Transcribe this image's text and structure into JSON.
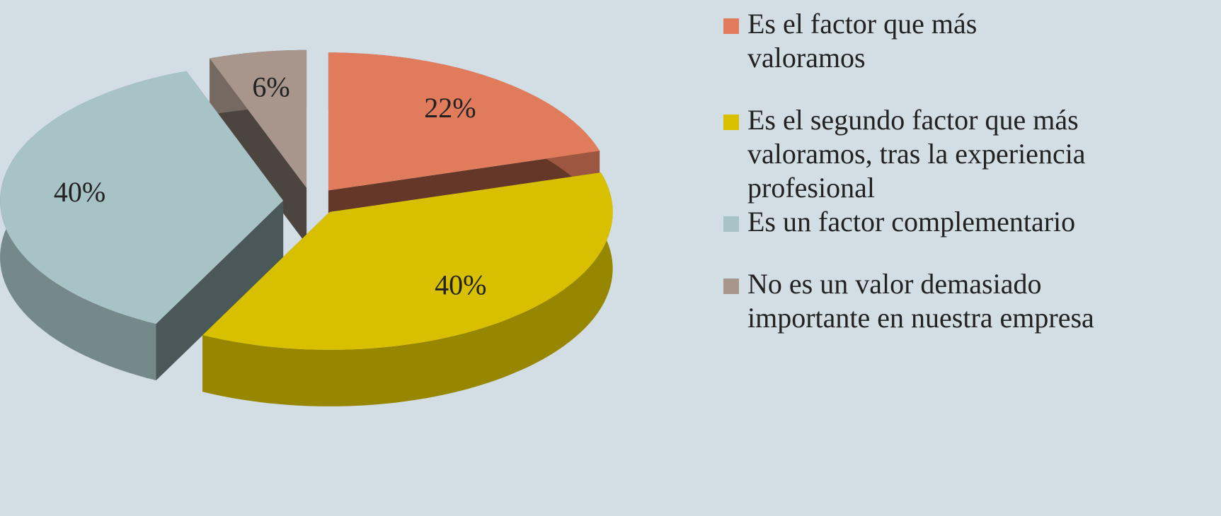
{
  "chart_data": {
    "type": "pie",
    "categories": [
      "Es el factor que más valoramos",
      "Es el segundo factor que más valoramos, tras la experiencia profesional",
      "Es un factor complementario",
      "No es un valor demasiado importante en nuestra empresa"
    ],
    "values": [
      22,
      40,
      40,
      6
    ],
    "value_labels": [
      "22%",
      "40%",
      "40%",
      "6%"
    ],
    "colors": [
      "#e07b5c",
      "#d8c000",
      "#a7c3c6",
      "#a8968c"
    ],
    "legend": "right"
  }
}
